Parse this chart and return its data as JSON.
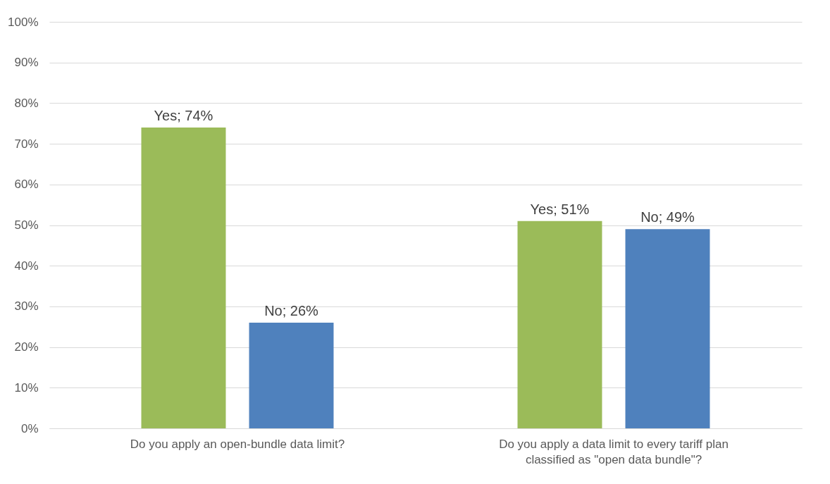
{
  "chart_data": {
    "type": "bar",
    "categories": [
      "Do you apply an open-bundle data limit?",
      "Do you apply a data limit  to every tariff plan classified as \"open data bundle\"?"
    ],
    "series": [
      {
        "color": "#9bbb59",
        "values": [
          74,
          51
        ],
        "value_labels": [
          "Yes; 74%",
          "Yes; 51%"
        ]
      },
      {
        "color": "#4f81bd",
        "values": [
          26,
          49
        ],
        "value_labels": [
          "No; 26%",
          "No; 49%"
        ]
      }
    ],
    "ylim": [
      0,
      100
    ],
    "yticks": [
      {
        "value": 0,
        "label": "0%"
      },
      {
        "value": 10,
        "label": "10%"
      },
      {
        "value": 20,
        "label": "20%"
      },
      {
        "value": 30,
        "label": "30%"
      },
      {
        "value": 40,
        "label": "40%"
      },
      {
        "value": 50,
        "label": "50%"
      },
      {
        "value": 60,
        "label": "60%"
      },
      {
        "value": 70,
        "label": "70%"
      },
      {
        "value": 80,
        "label": "80%"
      },
      {
        "value": 90,
        "label": "90%"
      },
      {
        "value": 100,
        "label": "100%"
      }
    ],
    "grid": "y"
  }
}
